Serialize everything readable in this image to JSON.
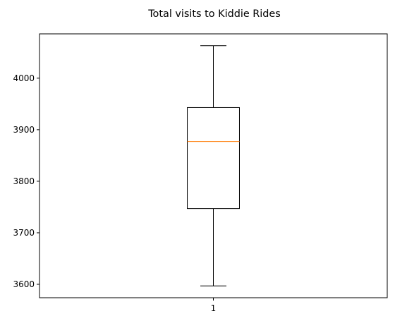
{
  "chart_data": {
    "type": "box",
    "title": "Total visits to Kiddie Rides",
    "xlabel": "",
    "ylabel": "",
    "categories": [
      "1"
    ],
    "boxes": [
      {
        "label": "1",
        "whisker_low": 3597,
        "q1": 3747,
        "median": 3877,
        "q3": 3943,
        "whisker_high": 4063
      }
    ],
    "yticks": [
      3600,
      3700,
      3800,
      3900,
      4000
    ],
    "ylim": [
      3574,
      4086
    ],
    "grid": false,
    "colors": {
      "box": "#000000",
      "median": "#ff7f0e",
      "whisker": "#000000"
    }
  }
}
